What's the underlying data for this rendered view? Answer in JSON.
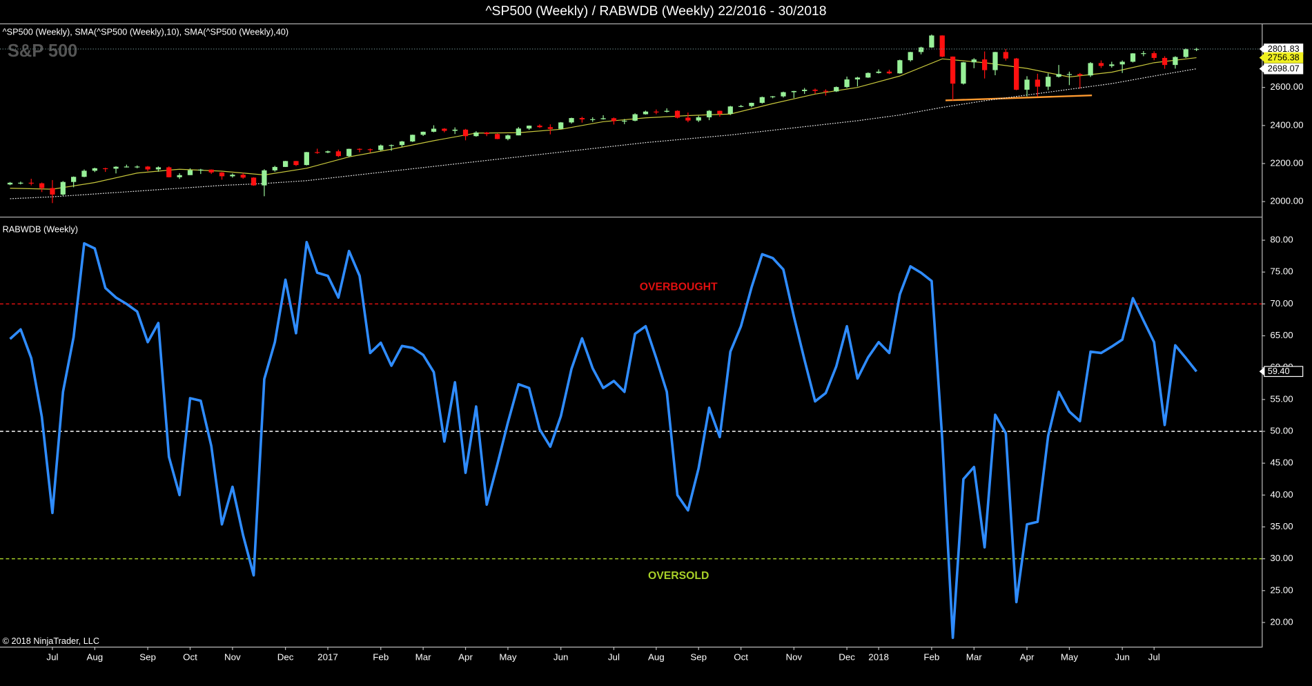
{
  "title": "^SP500 (Weekly) / RABWDB (Weekly)  22/2016 - 30/2018",
  "copyright": "© 2018 NinjaTrader, LLC",
  "chart_data": [
    {
      "type": "candlestick",
      "label": "^SP500 (Weekly),  SMA(^SP500 (Weekly),10),  SMA(^SP500 (Weekly),40)",
      "watermark": "S&P 500",
      "up_color": "#98f098",
      "down_color": "#ff1010",
      "ohlc": [
        [
          2090,
          2103,
          2086,
          2099
        ],
        [
          2099,
          2105,
          2090,
          2099
        ],
        [
          2099,
          2120,
          2085,
          2096
        ],
        [
          2096,
          2100,
          2050,
          2071
        ],
        [
          2071,
          2113,
          1992,
          2037
        ],
        [
          2037,
          2108,
          2030,
          2103
        ],
        [
          2103,
          2132,
          2075,
          2130
        ],
        [
          2130,
          2169,
          2128,
          2162
        ],
        [
          2162,
          2178,
          2155,
          2175
        ],
        [
          2175,
          2178,
          2156,
          2173
        ],
        [
          2173,
          2186,
          2148,
          2183
        ],
        [
          2183,
          2194,
          2179,
          2184
        ],
        [
          2184,
          2190,
          2175,
          2184
        ],
        [
          2184,
          2187,
          2160,
          2169
        ],
        [
          2169,
          2185,
          2157,
          2180
        ],
        [
          2180,
          2185,
          2127,
          2128
        ],
        [
          2128,
          2149,
          2119,
          2139
        ],
        [
          2139,
          2175,
          2139,
          2165
        ],
        [
          2165,
          2172,
          2145,
          2168
        ],
        [
          2168,
          2169,
          2145,
          2153
        ],
        [
          2153,
          2155,
          2115,
          2133
        ],
        [
          2133,
          2148,
          2126,
          2141
        ],
        [
          2141,
          2150,
          2120,
          2126
        ],
        [
          2126,
          2128,
          2083,
          2085
        ],
        [
          2085,
          2170,
          2028,
          2164
        ],
        [
          2164,
          2188,
          2157,
          2182
        ],
        [
          2182,
          2214,
          2182,
          2213
        ],
        [
          2213,
          2214,
          2187,
          2192
        ],
        [
          2192,
          2261,
          2190,
          2260
        ],
        [
          2260,
          2278,
          2251,
          2258
        ],
        [
          2258,
          2268,
          2254,
          2264
        ],
        [
          2264,
          2273,
          2234,
          2239
        ],
        [
          2239,
          2278,
          2233,
          2277
        ],
        [
          2277,
          2280,
          2259,
          2275
        ],
        [
          2275,
          2279,
          2258,
          2271
        ],
        [
          2271,
          2300,
          2267,
          2295
        ],
        [
          2295,
          2300,
          2267,
          2297
        ],
        [
          2297,
          2319,
          2288,
          2316
        ],
        [
          2316,
          2352,
          2313,
          2351
        ],
        [
          2351,
          2368,
          2345,
          2367
        ],
        [
          2367,
          2401,
          2364,
          2383
        ],
        [
          2383,
          2386,
          2364,
          2372
        ],
        [
          2372,
          2390,
          2355,
          2378
        ],
        [
          2378,
          2382,
          2322,
          2344
        ],
        [
          2344,
          2370,
          2341,
          2363
        ],
        [
          2363,
          2366,
          2344,
          2355
        ],
        [
          2355,
          2358,
          2328,
          2329
        ],
        [
          2329,
          2352,
          2322,
          2348
        ],
        [
          2348,
          2392,
          2348,
          2384
        ],
        [
          2384,
          2400,
          2377,
          2399
        ],
        [
          2399,
          2406,
          2387,
          2391
        ],
        [
          2391,
          2406,
          2353,
          2382
        ],
        [
          2382,
          2418,
          2381,
          2416
        ],
        [
          2416,
          2441,
          2410,
          2439
        ],
        [
          2439,
          2446,
          2415,
          2432
        ],
        [
          2432,
          2443,
          2419,
          2433
        ],
        [
          2433,
          2454,
          2431,
          2438
        ],
        [
          2438,
          2442,
          2405,
          2423
        ],
        [
          2423,
          2434,
          2407,
          2425
        ],
        [
          2425,
          2464,
          2422,
          2459
        ],
        [
          2459,
          2478,
          2457,
          2473
        ],
        [
          2473,
          2484,
          2459,
          2472
        ],
        [
          2472,
          2490,
          2468,
          2477
        ],
        [
          2477,
          2480,
          2437,
          2441
        ],
        [
          2441,
          2468,
          2417,
          2426
        ],
        [
          2426,
          2451,
          2418,
          2443
        ],
        [
          2443,
          2481,
          2428,
          2477
        ],
        [
          2477,
          2478,
          2446,
          2461
        ],
        [
          2461,
          2503,
          2455,
          2500
        ],
        [
          2500,
          2508,
          2496,
          2502
        ],
        [
          2502,
          2520,
          2495,
          2519
        ],
        [
          2519,
          2552,
          2515,
          2549
        ],
        [
          2549,
          2555,
          2543,
          2553
        ],
        [
          2553,
          2578,
          2547,
          2575
        ],
        [
          2575,
          2582,
          2544,
          2581
        ],
        [
          2581,
          2597,
          2566,
          2588
        ],
        [
          2588,
          2594,
          2566,
          2582
        ],
        [
          2582,
          2590,
          2557,
          2579
        ],
        [
          2579,
          2605,
          2576,
          2602
        ],
        [
          2602,
          2657,
          2597,
          2642
        ],
        [
          2642,
          2656,
          2605,
          2652
        ],
        [
          2652,
          2679,
          2650,
          2676
        ],
        [
          2676,
          2695,
          2673,
          2683
        ],
        [
          2683,
          2693,
          2670,
          2674
        ],
        [
          2674,
          2746,
          2672,
          2743
        ],
        [
          2743,
          2787,
          2736,
          2786
        ],
        [
          2786,
          2814,
          2774,
          2810
        ],
        [
          2810,
          2878,
          2808,
          2873
        ],
        [
          2873,
          2874,
          2759,
          2762
        ],
        [
          2762,
          2763,
          2532,
          2620
        ],
        [
          2620,
          2734,
          2615,
          2732
        ],
        [
          2732,
          2754,
          2701,
          2747
        ],
        [
          2747,
          2789,
          2647,
          2691
        ],
        [
          2691,
          2787,
          2664,
          2786
        ],
        [
          2786,
          2802,
          2741,
          2752
        ],
        [
          2752,
          2755,
          2585,
          2588
        ],
        [
          2588,
          2659,
          2553,
          2641
        ],
        [
          2641,
          2672,
          2553,
          2604
        ],
        [
          2604,
          2674,
          2586,
          2656
        ],
        [
          2656,
          2718,
          2652,
          2670
        ],
        [
          2670,
          2683,
          2612,
          2670
        ],
        [
          2670,
          2676,
          2594,
          2663
        ],
        [
          2663,
          2733,
          2655,
          2728
        ],
        [
          2728,
          2742,
          2702,
          2713
        ],
        [
          2713,
          2735,
          2704,
          2721
        ],
        [
          2721,
          2742,
          2676,
          2735
        ],
        [
          2735,
          2780,
          2731,
          2779
        ],
        [
          2779,
          2791,
          2764,
          2780
        ],
        [
          2780,
          2790,
          2743,
          2755
        ],
        [
          2755,
          2764,
          2698,
          2718
        ],
        [
          2718,
          2764,
          2699,
          2760
        ],
        [
          2760,
          2805,
          2755,
          2801
        ],
        [
          2801,
          2808,
          2791,
          2801.83
        ]
      ],
      "overlays": [
        {
          "color": "#c8c83c",
          "tag_color": "#f0f020",
          "x": [
            0,
            4,
            8,
            12,
            16,
            20,
            24,
            28,
            32,
            36,
            40,
            44,
            48,
            52,
            56,
            60,
            64,
            68,
            72,
            76,
            80,
            84,
            88,
            92,
            96,
            100,
            104,
            108,
            112
          ],
          "values": [
            2070,
            2065,
            2100,
            2150,
            2170,
            2160,
            2140,
            2175,
            2235,
            2275,
            2320,
            2360,
            2362,
            2380,
            2420,
            2440,
            2452,
            2460,
            2515,
            2565,
            2600,
            2660,
            2750,
            2730,
            2700,
            2655,
            2680,
            2730,
            2756.38
          ]
        },
        {
          "color": "#e8e8e8",
          "tag_color": "#ffffff",
          "x": [
            0,
            4,
            8,
            12,
            16,
            20,
            24,
            28,
            32,
            36,
            40,
            44,
            48,
            52,
            56,
            60,
            64,
            68,
            72,
            76,
            80,
            84,
            88,
            92,
            96,
            100,
            104,
            108,
            112
          ],
          "values": [
            2015,
            2025,
            2040,
            2055,
            2070,
            2085,
            2095,
            2110,
            2135,
            2160,
            2185,
            2210,
            2235,
            2260,
            2285,
            2310,
            2330,
            2350,
            2375,
            2400,
            2425,
            2455,
            2495,
            2530,
            2560,
            2590,
            2620,
            2660,
            2698.07
          ]
        }
      ],
      "ylim": [
        1925,
        2932
      ],
      "yticks": [
        {
          "value": 2000,
          "label": "2000.00"
        },
        {
          "value": 2200,
          "label": "2200.00"
        },
        {
          "value": 2400,
          "label": "2400.00"
        },
        {
          "value": 2600,
          "label": "2600.00"
        }
      ]
    },
    {
      "type": "line",
      "label": "RABWDB (Weekly)",
      "categories": [
        null,
        null,
        null,
        null,
        "Jul",
        null,
        null,
        null,
        "Aug",
        null,
        null,
        null,
        null,
        "Sep",
        null,
        null,
        null,
        "Oct",
        null,
        null,
        null,
        "Nov",
        null,
        null,
        null,
        null,
        "Dec",
        null,
        null,
        null,
        "2017",
        null,
        null,
        null,
        null,
        "Feb",
        null,
        null,
        null,
        "Mar",
        null,
        null,
        null,
        "Apr",
        null,
        null,
        null,
        "May",
        null,
        null,
        null,
        null,
        "Jun",
        null,
        null,
        null,
        null,
        "Jul",
        null,
        null,
        null,
        "Aug",
        null,
        null,
        null,
        "Sep",
        null,
        null,
        null,
        "Oct",
        null,
        null,
        null,
        null,
        "Nov",
        null,
        null,
        null,
        null,
        "Dec",
        null,
        null,
        "2018",
        null,
        null,
        null,
        null,
        "Feb",
        null,
        null,
        null,
        "Mar",
        null,
        null,
        null,
        null,
        "Apr",
        null,
        null,
        null,
        "May",
        null,
        null,
        null,
        null,
        "Jun",
        null,
        null,
        "Jul",
        null,
        null,
        null,
        null
      ],
      "series": [
        {
          "color": "#2f8cff",
          "values": [
            64.5,
            66,
            61.5,
            52.3,
            37.2,
            56.2,
            64.8,
            79.5,
            78.7,
            72.5,
            71,
            70,
            68.8,
            64,
            67,
            46,
            40,
            55.2,
            54.8,
            47.7,
            35.4,
            41.3,
            33.7,
            27.4,
            58.2,
            64,
            73.8,
            65.4,
            79.7,
            74.9,
            74.4,
            71,
            78.3,
            74.4,
            62.3,
            63.9,
            60.3,
            63.4,
            63.1,
            62,
            59.3,
            48.4,
            57.7,
            43.5,
            53.9,
            38.5,
            44.8,
            51.4,
            57.4,
            56.8,
            50.3,
            47.6,
            52.4,
            59.8,
            64.6,
            59.9,
            56.8,
            57.9,
            56.2,
            65.3,
            66.5,
            61.5,
            56.2,
            40,
            37.6,
            44.2,
            53.7,
            49.1,
            62.5,
            66.5,
            72.6,
            77.8,
            77.2,
            75.4,
            68,
            61.2,
            54.7,
            56,
            60.2,
            66.5,
            58.3,
            61.6,
            64,
            62.3,
            71.5,
            75.9,
            74.9,
            73.6,
            48.8,
            17.6,
            42.5,
            44.4,
            31.8,
            52.6,
            49.7,
            23.2,
            35.4,
            35.8,
            49.3,
            56.2,
            53.1,
            51.6,
            62.5,
            62.3,
            63.3,
            64.4,
            70.9,
            67.4,
            64,
            51,
            63.5,
            61.5,
            59.4
          ],
          "value_labels": [
            null,
            null,
            null,
            null,
            null,
            null,
            null,
            null,
            null,
            null,
            null,
            null,
            null,
            null,
            null,
            null,
            null,
            null,
            null,
            null,
            null,
            null,
            null,
            null,
            null,
            null,
            null,
            null,
            null,
            null,
            null,
            null,
            null,
            null,
            null,
            null,
            null,
            null,
            null,
            null,
            null,
            null,
            null,
            null,
            null,
            null,
            null,
            null,
            null,
            null,
            null,
            null,
            null,
            null,
            null,
            null,
            null,
            null,
            null,
            null,
            null,
            null,
            null,
            null,
            null,
            null,
            null,
            null,
            null,
            null,
            null,
            null,
            null,
            null,
            null,
            null,
            null,
            null,
            null,
            null,
            null,
            null,
            null,
            null,
            null,
            null,
            null,
            null,
            null,
            null,
            null,
            null,
            null,
            null,
            null,
            null,
            null,
            null,
            null,
            null,
            null,
            null,
            null,
            null,
            null,
            null,
            null,
            null,
            null,
            null,
            null,
            null,
            "59.40"
          ]
        }
      ],
      "hlines": [
        {
          "value": 70,
          "color": "#e01010",
          "label": "OVERBOUGHT"
        },
        {
          "value": 50,
          "color": "#ffffff"
        },
        {
          "value": 30,
          "color": "#a8d028",
          "label": "OVERSOLD"
        }
      ],
      "ylim": [
        16.2,
        83.3
      ],
      "yticks": [
        {
          "value": 20,
          "label": "20.00"
        },
        {
          "value": 25,
          "label": "25.00"
        },
        {
          "value": 30,
          "label": "30.00"
        },
        {
          "value": 35,
          "label": "35.00"
        },
        {
          "value": 40,
          "label": "40.00"
        },
        {
          "value": 45,
          "label": "45.00"
        },
        {
          "value": 50,
          "label": "50.00"
        },
        {
          "value": 55,
          "label": "55.00"
        },
        {
          "value": 60,
          "label": "60.00"
        },
        {
          "value": 65,
          "label": "65.00"
        },
        {
          "value": 70,
          "label": "70.00"
        },
        {
          "value": 75,
          "label": "75.00"
        },
        {
          "value": 80,
          "label": "80.00"
        }
      ]
    }
  ]
}
